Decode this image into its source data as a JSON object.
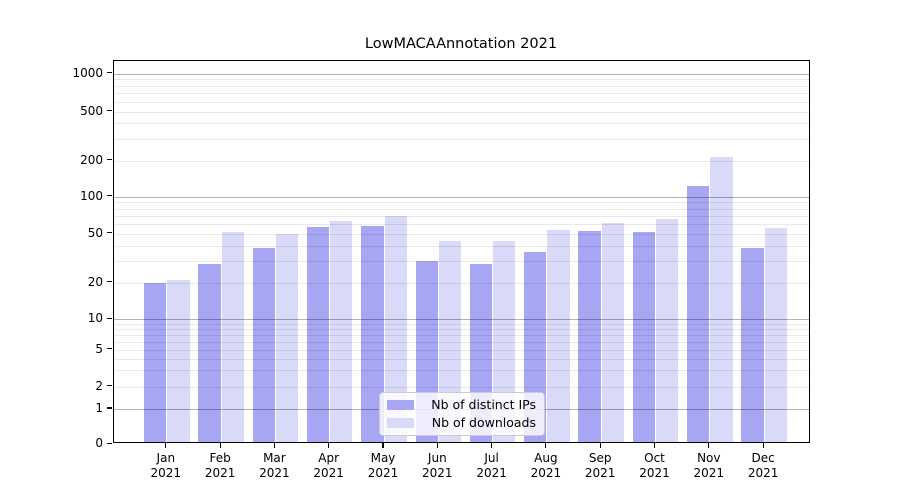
{
  "title": "LowMACAAnnotation 2021",
  "year_label": "2021",
  "legend": {
    "items": [
      {
        "label": "Nb of distinct IPs",
        "color": "#a6a6f2"
      },
      {
        "label": "Nb of downloads",
        "color": "#d9d9f8"
      }
    ]
  },
  "axes": {
    "ytick_labels": [
      "1000",
      "500",
      "200",
      "100",
      "50",
      "20",
      "10",
      "5",
      "2",
      "1",
      "0"
    ],
    "ytick_values": [
      1000,
      500,
      200,
      100,
      50,
      20,
      10,
      5,
      2,
      1,
      0
    ],
    "minor_grid_values": [
      3,
      4,
      6,
      7,
      8,
      9,
      30,
      40,
      60,
      70,
      80,
      90,
      300,
      400,
      600,
      700,
      800,
      900
    ],
    "major_grid_values": [
      1,
      10,
      100,
      1000
    ]
  },
  "chart_data": {
    "type": "bar",
    "title": "LowMACAAnnotation 2021",
    "xlabel": "",
    "ylabel": "",
    "yscale": "symlog",
    "ylim": [
      0,
      1250
    ],
    "grid": true,
    "legend_position": "lower center",
    "categories": [
      "Jan",
      "Feb",
      "Mar",
      "Apr",
      "May",
      "Jun",
      "Jul",
      "Aug",
      "Sep",
      "Oct",
      "Nov",
      "Dec"
    ],
    "category_year": "2021",
    "series": [
      {
        "name": "Nb of distinct IPs",
        "color": "#a6a6f2",
        "values": [
          19,
          27,
          37,
          54,
          55,
          29,
          27,
          34,
          50,
          49,
          117,
          37
        ]
      },
      {
        "name": "Nb of downloads",
        "color": "#d9d9f8",
        "values": [
          20,
          49,
          48,
          61,
          67,
          42,
          42,
          51,
          58,
          63,
          205,
          53
        ]
      }
    ]
  }
}
